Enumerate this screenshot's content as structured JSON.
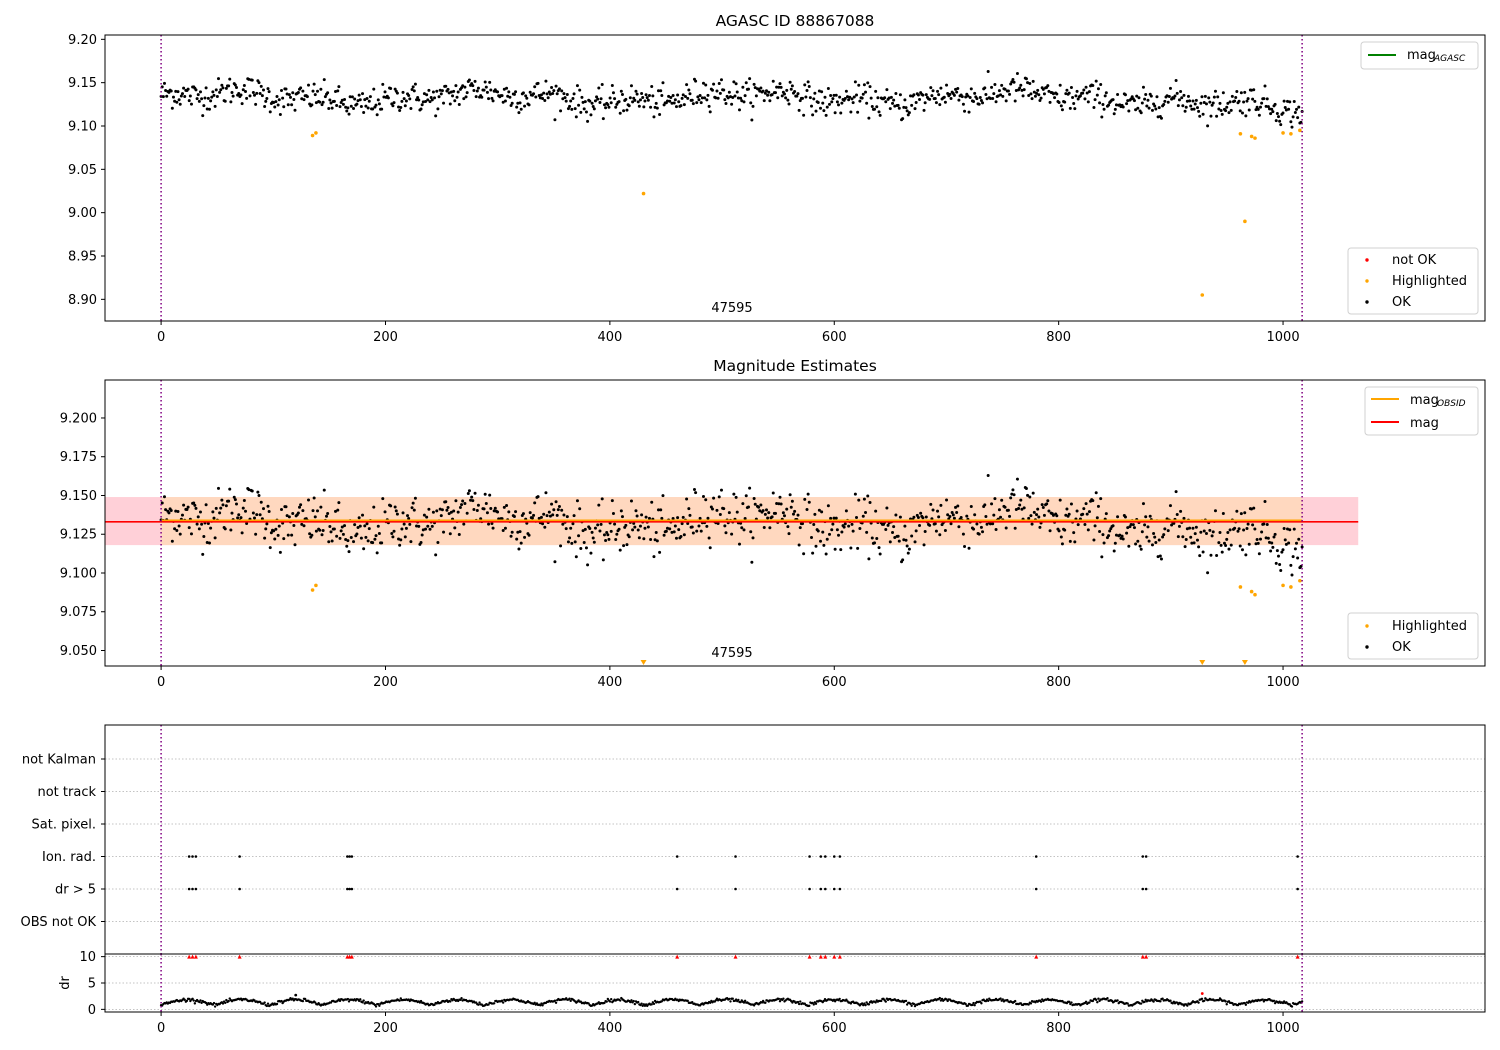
{
  "colors": {
    "ok": "#000000",
    "highlighted": "#ffa500",
    "not_ok": "#ff0000",
    "agasc_line": "#008000",
    "obsid_line": "#ffa500",
    "mag_line": "#ff0000",
    "obs_boundary": "#800080",
    "mag_band": "#ffc0cb",
    "obsid_band": "#ffdab9",
    "grid": "#b0b0b0"
  },
  "chart_data": [
    {
      "type": "scatter",
      "title": "AGASC ID 88867088",
      "xlim": [
        -50,
        1180
      ],
      "ylim": [
        8.875,
        9.205
      ],
      "xticks": [
        0,
        200,
        400,
        600,
        800,
        1000
      ],
      "yticks": [
        8.9,
        8.95,
        9.0,
        9.05,
        9.1,
        9.15,
        9.2
      ],
      "xtick_labels": [
        "0",
        "200",
        "400",
        "600",
        "800",
        "1000"
      ],
      "ytick_labels": [
        "8.90",
        "8.95",
        "9.00",
        "9.05",
        "9.10",
        "9.15",
        "9.20"
      ],
      "obs_boundaries": [
        0,
        1017
      ],
      "obsid_label": "47595",
      "obsid_label_x": 508,
      "legend_lines": [
        {
          "name": "mag",
          "sub": "AGASC",
          "color": "#008000"
        }
      ],
      "legend_points": [
        {
          "name": "not OK",
          "color": "#ff0000"
        },
        {
          "name": "Highlighted",
          "color": "#ffa500"
        },
        {
          "name": "OK",
          "color": "#000000"
        }
      ],
      "series": [
        {
          "name": "OK",
          "mean": 9.133,
          "scatter": 0.012,
          "n": 1015,
          "x_range": [
            0,
            1017
          ]
        },
        {
          "name": "Highlighted",
          "points": [
            [
              135,
              9.089
            ],
            [
              138,
              9.092
            ],
            [
              430,
              9.022
            ],
            [
              928,
              8.905
            ],
            [
              962,
              9.091
            ],
            [
              966,
              8.99
            ],
            [
              972,
              9.088
            ],
            [
              975,
              9.086
            ],
            [
              1000,
              9.092
            ],
            [
              1007,
              9.091
            ],
            [
              1015,
              9.095
            ]
          ]
        }
      ]
    },
    {
      "type": "scatter",
      "title": "Magnitude Estimates",
      "xlim": [
        -50,
        1180
      ],
      "ylim": [
        9.04,
        9.2245
      ],
      "xticks": [
        0,
        200,
        400,
        600,
        800,
        1000
      ],
      "yticks": [
        9.05,
        9.075,
        9.1,
        9.125,
        9.15,
        9.175,
        9.2
      ],
      "xtick_labels": [
        "0",
        "200",
        "400",
        "600",
        "800",
        "1000"
      ],
      "ytick_labels": [
        "9.050",
        "9.075",
        "9.100",
        "9.125",
        "9.150",
        "9.175",
        "9.200"
      ],
      "obs_boundaries": [
        0,
        1017
      ],
      "obsid_label": "47595",
      "obsid_label_x": 508,
      "mag": 9.133,
      "mag_band": [
        9.118,
        9.149
      ],
      "mag_xrange": [
        -50,
        1067
      ],
      "obsid_mag": 9.133,
      "obsid_band": [
        9.118,
        9.149
      ],
      "obsid_xrange": [
        0,
        1017
      ],
      "legend_lines": [
        {
          "name": "mag",
          "sub": "OBSID",
          "color": "#ffa500"
        },
        {
          "name": "mag",
          "sub": "",
          "color": "#ff0000"
        }
      ],
      "legend_points": [
        {
          "name": "Highlighted",
          "color": "#ffa500"
        },
        {
          "name": "OK",
          "color": "#000000"
        }
      ],
      "offscale_markers_x": [
        430,
        928,
        966
      ]
    },
    {
      "type": "scatter",
      "title": "",
      "xlim": [
        -50,
        1180
      ],
      "xticks": [
        0,
        200,
        400,
        600,
        800,
        1000
      ],
      "xtick_labels": [
        "0",
        "200",
        "400",
        "600",
        "800",
        "1000"
      ],
      "obs_boundaries": [
        0,
        1017
      ],
      "flag_rows": [
        "not Kalman",
        "not track",
        "Sat. pixel.",
        "Ion. rad.",
        "dr > 5",
        "OBS not OK"
      ],
      "flag_x": [
        25,
        28,
        31,
        70,
        166,
        168,
        170,
        460,
        512,
        578,
        588,
        592,
        600,
        605,
        780,
        875,
        878,
        1013
      ],
      "dr_label": "dr",
      "dr_ylim": [
        -0.5,
        10.5
      ],
      "dr_yticks": [
        0,
        5,
        10
      ],
      "dr_ytick_labels": [
        "0",
        "5",
        "10"
      ],
      "dr_flag_value": 10,
      "dr_typical": [
        0.3,
        2.2
      ],
      "dr_outliers": [
        [
          120,
          2.7
        ],
        [
          928,
          3.0
        ]
      ]
    }
  ]
}
